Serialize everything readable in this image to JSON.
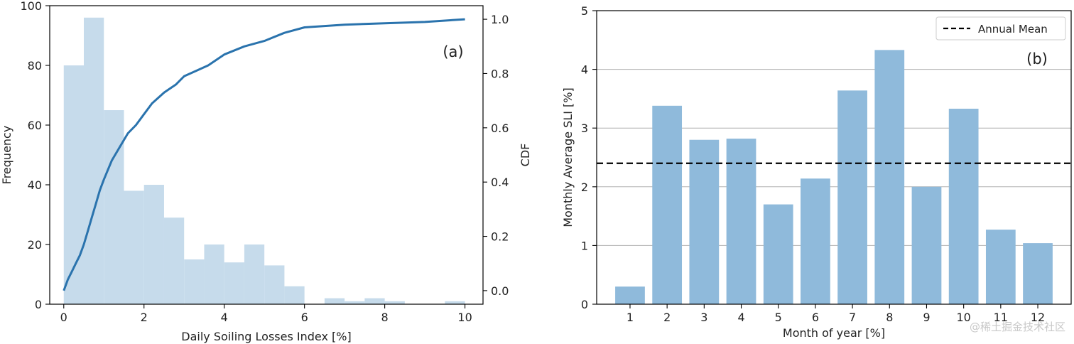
{
  "chart_data": [
    {
      "type": "bar",
      "subtype": "histogram-with-cdf",
      "panel_label": "(a)",
      "xlabel": "Daily Soiling Losses Index [%]",
      "ylabel": "Frequency",
      "y2label": "CDF",
      "xlim": [
        -0.35,
        10.45
      ],
      "ylim": [
        0,
        100
      ],
      "y2lim": [
        -0.05,
        1.05
      ],
      "xticks": [
        0,
        2,
        4,
        6,
        8,
        10
      ],
      "yticks": [
        0,
        20,
        40,
        60,
        80,
        100
      ],
      "y2ticks": [
        0.0,
        0.2,
        0.4,
        0.6,
        0.8,
        1.0
      ],
      "bin_width": 0.5,
      "bins": [
        {
          "x0": 0.0,
          "value": 80
        },
        {
          "x0": 0.5,
          "value": 96
        },
        {
          "x0": 1.0,
          "value": 65
        },
        {
          "x0": 1.5,
          "value": 38
        },
        {
          "x0": 2.0,
          "value": 40
        },
        {
          "x0": 2.5,
          "value": 29
        },
        {
          "x0": 3.0,
          "value": 15
        },
        {
          "x0": 3.5,
          "value": 20
        },
        {
          "x0": 4.0,
          "value": 14
        },
        {
          "x0": 4.5,
          "value": 20
        },
        {
          "x0": 5.0,
          "value": 13
        },
        {
          "x0": 5.5,
          "value": 6
        },
        {
          "x0": 6.0,
          "value": 0
        },
        {
          "x0": 6.5,
          "value": 2
        },
        {
          "x0": 7.0,
          "value": 1
        },
        {
          "x0": 7.5,
          "value": 2
        },
        {
          "x0": 8.0,
          "value": 1
        },
        {
          "x0": 8.5,
          "value": 0
        },
        {
          "x0": 9.0,
          "value": 0
        },
        {
          "x0": 9.5,
          "value": 1
        }
      ],
      "cdf": {
        "x": [
          0.0,
          0.1,
          0.2,
          0.3,
          0.4,
          0.5,
          0.6,
          0.7,
          0.8,
          0.9,
          1.0,
          1.2,
          1.4,
          1.6,
          1.8,
          2.0,
          2.2,
          2.5,
          2.8,
          3.0,
          3.3,
          3.6,
          4.0,
          4.5,
          5.0,
          5.5,
          6.0,
          6.5,
          7.0,
          8.0,
          9.0,
          10.0
        ],
        "y": [
          0.0,
          0.04,
          0.07,
          0.1,
          0.13,
          0.17,
          0.22,
          0.27,
          0.32,
          0.37,
          0.41,
          0.48,
          0.53,
          0.58,
          0.61,
          0.65,
          0.69,
          0.73,
          0.76,
          0.79,
          0.81,
          0.83,
          0.87,
          0.9,
          0.92,
          0.95,
          0.97,
          0.975,
          0.98,
          0.985,
          0.99,
          1.0
        ]
      },
      "colors": {
        "bars": "#c6dbeb",
        "cdf_line": "#2a73ad"
      }
    },
    {
      "type": "bar",
      "panel_label": "(b)",
      "xlabel": "Month of year [%]",
      "ylabel": "Monthly Average SLI [%]",
      "ylim": [
        0,
        5
      ],
      "yticks": [
        0,
        1,
        2,
        3,
        4,
        5
      ],
      "categories": [
        "1",
        "2",
        "3",
        "4",
        "5",
        "6",
        "7",
        "8",
        "9",
        "10",
        "11",
        "12"
      ],
      "values": [
        0.3,
        3.38,
        2.8,
        2.82,
        1.7,
        2.14,
        3.64,
        4.33,
        2.0,
        3.33,
        1.27,
        1.04
      ],
      "grid": "horizontal",
      "reference_line": {
        "name": "Annual Mean",
        "value": 2.4,
        "style": "dashed"
      },
      "legend_position": "top-right",
      "colors": {
        "bars": "#8fbadb",
        "reference_line": "#000000",
        "grid": "#b0b0b0"
      }
    }
  ],
  "watermark": "@稀土掘金技术社区"
}
